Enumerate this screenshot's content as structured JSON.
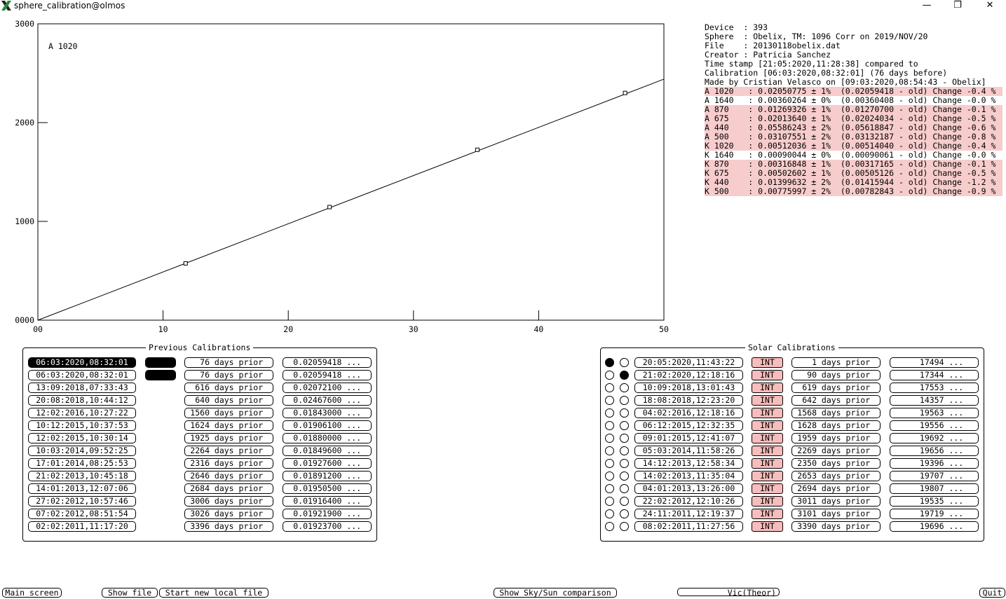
{
  "window": {
    "title": "sphere_calibration@olmos",
    "min": "—",
    "max": "❐",
    "close": "✕"
  },
  "chart_data": {
    "type": "scatter",
    "annotation": "A 1020",
    "xlim": [
      0,
      50
    ],
    "ylim": [
      0,
      3000
    ],
    "x_ticks": [
      {
        "v": 0,
        "label": "00"
      },
      {
        "v": 10,
        "label": "10"
      },
      {
        "v": 20,
        "label": "20"
      },
      {
        "v": 30,
        "label": "30"
      },
      {
        "v": 40,
        "label": "40"
      },
      {
        "v": 50,
        "label": "50"
      }
    ],
    "y_ticks": [
      {
        "v": 0,
        "label": "0000"
      },
      {
        "v": 1000,
        "label": "1000"
      },
      {
        "v": 2000,
        "label": "2000"
      },
      {
        "v": 3000,
        "label": "3000"
      }
    ],
    "points": [
      {
        "x": 11.8,
        "y": 575
      },
      {
        "x": 23.3,
        "y": 1145
      },
      {
        "x": 35.1,
        "y": 1725
      },
      {
        "x": 46.9,
        "y": 2300
      }
    ],
    "fit_line": {
      "x0": 0,
      "y0": 0,
      "x1": 50,
      "y1": 2440
    }
  },
  "info": {
    "header": [
      "Device  : 393",
      "Sphere  : Obelix, TM: 1096 Corr on 2019/NOV/20",
      "File    : 20130118obelix.dat",
      "Creator : Patricia Sanchez",
      "Time stamp [21:05:2020,11:28:38] compared to",
      "Calibration [06:03:2020,08:32:01] (76 days before)",
      "Made by Cristian Velasco on [09:03:2020,08:54:43 - Obelix]"
    ],
    "rows": [
      {
        "text": "A 1020   : 0.02050775 ± 1%  (0.02059418 - old) Change -0.4 %",
        "hl": true
      },
      {
        "text": "A 1640   : 0.00360264 ± 0%  (0.00360408 - old) Change -0.0 %",
        "hl": false
      },
      {
        "text": "A 870    : 0.01269326 ± 1%  (0.01270700 - old) Change -0.1 %",
        "hl": true
      },
      {
        "text": "A 675    : 0.02013640 ± 1%  (0.02024034 - old) Change -0.5 %",
        "hl": true
      },
      {
        "text": "A 440    : 0.05586243 ± 2%  (0.05618847 - old) Change -0.6 %",
        "hl": true
      },
      {
        "text": "A 500    : 0.03107551 ± 2%  (0.03132187 - old) Change -0.8 %",
        "hl": true
      },
      {
        "text": "K 1020   : 0.00512036 ± 1%  (0.00514040 - old) Change -0.4 %",
        "hl": true
      },
      {
        "text": "K 1640   : 0.00090044 ± 0%  (0.00090061 - old) Change -0.0 %",
        "hl": false
      },
      {
        "text": "K 870    : 0.00316848 ± 1%  (0.00317165 - old) Change -0.1 %",
        "hl": true
      },
      {
        "text": "K 675    : 0.00502602 ± 1%  (0.00505126 - old) Change -0.5 %",
        "hl": true
      },
      {
        "text": "K 440    : 0.01399632 ± 2%  (0.01415944 - old) Change -1.2 %",
        "hl": true
      },
      {
        "text": "K 500    : 0.00775997 ± 2%  (0.00782843 - old) Change -0.9 %",
        "hl": true
      }
    ]
  },
  "previous": {
    "title": "Previous Calibrations",
    "rows": [
      {
        "date": "06:03:2020,08:32:01",
        "selected": true,
        "marker": true,
        "prior": "76 days prior",
        "value": "0.02059418 ..."
      },
      {
        "date": "06:03:2020,08:32:01",
        "selected": false,
        "marker": true,
        "prior": "76 days prior",
        "value": "0.02059418 ..."
      },
      {
        "date": "13:09:2018,07:33:43",
        "selected": false,
        "marker": false,
        "prior": "616 days prior",
        "value": "0.02072100 ..."
      },
      {
        "date": "20:08:2018,10:44:12",
        "selected": false,
        "marker": false,
        "prior": "640 days prior",
        "value": "0.02467600 ..."
      },
      {
        "date": "12:02:2016,10:27:22",
        "selected": false,
        "marker": false,
        "prior": "1560 days prior",
        "value": "0.01843000 ..."
      },
      {
        "date": "10:12:2015,10:37:53",
        "selected": false,
        "marker": false,
        "prior": "1624 days prior",
        "value": "0.01906100 ..."
      },
      {
        "date": "12:02:2015,10:30:14",
        "selected": false,
        "marker": false,
        "prior": "1925 days prior",
        "value": "0.01880000 ..."
      },
      {
        "date": "10:03:2014,09:52:25",
        "selected": false,
        "marker": false,
        "prior": "2264 days prior",
        "value": "0.01849600 ..."
      },
      {
        "date": "17:01:2014,08:25:53",
        "selected": false,
        "marker": false,
        "prior": "2316 days prior",
        "value": "0.01927600 ..."
      },
      {
        "date": "21:02:2013,10:45:18",
        "selected": false,
        "marker": false,
        "prior": "2646 days prior",
        "value": "0.01891200 ..."
      },
      {
        "date": "14:01:2013,12:07:06",
        "selected": false,
        "marker": false,
        "prior": "2684 days prior",
        "value": "0.01950500 ..."
      },
      {
        "date": "27:02:2012,10:57:46",
        "selected": false,
        "marker": false,
        "prior": "3006 days prior",
        "value": "0.01916400 ..."
      },
      {
        "date": "07:02:2012,08:51:54",
        "selected": false,
        "marker": false,
        "prior": "3026 days prior",
        "value": "0.01921900 ..."
      },
      {
        "date": "02:02:2011,11:17:20",
        "selected": false,
        "marker": false,
        "prior": "3396 days prior",
        "value": "0.01923700 ..."
      }
    ]
  },
  "solar": {
    "title": "Solar Calibrations",
    "rows": [
      {
        "r1": true,
        "r2": false,
        "date": "20:05:2020,11:43:22",
        "int": "INT",
        "prior": "1 days prior",
        "value": "17494 ..."
      },
      {
        "r1": false,
        "r2": true,
        "date": "21:02:2020,12:18:16",
        "int": "INT",
        "prior": "90 days prior",
        "value": "17344 ..."
      },
      {
        "r1": false,
        "r2": false,
        "date": "10:09:2018,13:01:43",
        "int": "INT",
        "prior": "619 days prior",
        "value": "17553 ..."
      },
      {
        "r1": false,
        "r2": false,
        "date": "18:08:2018,12:23:20",
        "int": "INT",
        "prior": "642 days prior",
        "value": "14357 ..."
      },
      {
        "r1": false,
        "r2": false,
        "date": "04:02:2016,12:18:16",
        "int": "INT",
        "prior": "1568 days prior",
        "value": "19563 ..."
      },
      {
        "r1": false,
        "r2": false,
        "date": "06:12:2015,12:32:35",
        "int": "INT",
        "prior": "1628 days prior",
        "value": "19556 ..."
      },
      {
        "r1": false,
        "r2": false,
        "date": "09:01:2015,12:41:07",
        "int": "INT",
        "prior": "1959 days prior",
        "value": "19692 ..."
      },
      {
        "r1": false,
        "r2": false,
        "date": "05:03:2014,11:58:26",
        "int": "INT",
        "prior": "2269 days prior",
        "value": "19656 ..."
      },
      {
        "r1": false,
        "r2": false,
        "date": "14:12:2013,12:58:34",
        "int": "INT",
        "prior": "2350 days prior",
        "value": "19396 ..."
      },
      {
        "r1": false,
        "r2": false,
        "date": "14:02:2013,11:35:04",
        "int": "INT",
        "prior": "2653 days prior",
        "value": "19707 ..."
      },
      {
        "r1": false,
        "r2": false,
        "date": "04:01:2013,13:26:00",
        "int": "INT",
        "prior": "2694 days prior",
        "value": "19807 ..."
      },
      {
        "r1": false,
        "r2": false,
        "date": "22:02:2012,12:10:26",
        "int": "INT",
        "prior": "3011 days prior",
        "value": "19535 ..."
      },
      {
        "r1": false,
        "r2": false,
        "date": "24:11:2011,12:19:37",
        "int": "INT",
        "prior": "3101 days prior",
        "value": "19719 ..."
      },
      {
        "r1": false,
        "r2": false,
        "date": "08:02:2011,11:27:56",
        "int": "INT",
        "prior": "3390 days prior",
        "value": "19696 ..."
      }
    ]
  },
  "buttons": {
    "main_screen": "Main screen",
    "show_file": "Show file",
    "start_new_local_file": "Start new local file",
    "show_sky_sun": "Show Sky/Sun comparison",
    "vic_theor": "Vic(Theor)",
    "quit": "Quit"
  }
}
